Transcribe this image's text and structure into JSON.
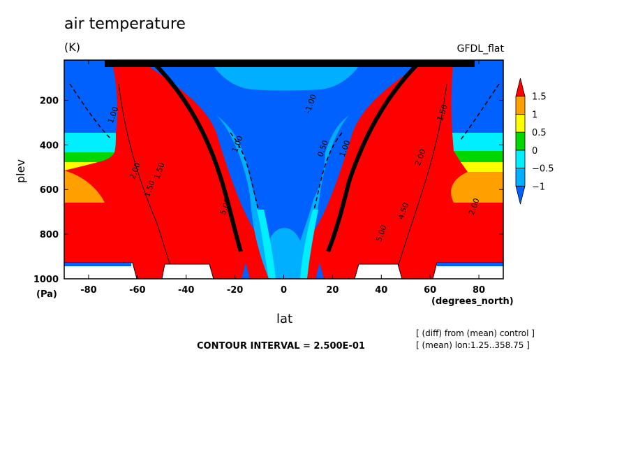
{
  "header": {
    "title": "air temperature",
    "units": "(K)",
    "model": "GFDL_flat"
  },
  "axes": {
    "xlabel": "lat",
    "xunits": "(degrees_north)",
    "ylabel": "plev",
    "yunits": "(Pa)"
  },
  "footer": {
    "contour_interval": "CONTOUR INTERVAL = 2.500E-01",
    "note_diff": "[ (diff) from (mean) control ]",
    "note_mean": "[ (mean) lon:1.25..358.75 ]"
  },
  "colors": {
    "red": "#ff0000",
    "orange": "#ff9f00",
    "yellow": "#ffff00",
    "green": "#00d700",
    "cyan": "#00efff",
    "lightblue": "#00afff",
    "blue": "#0061ff",
    "black": "#000000"
  },
  "chart_data": {
    "type": "heatmap",
    "title": "air temperature",
    "subtitle": "(K)",
    "xlabel": "lat",
    "ylabel": "plev",
    "xlim": [
      -90,
      90
    ],
    "ylim": [
      1000,
      20
    ],
    "x_ticks": [
      -80,
      -60,
      -40,
      -20,
      0,
      20,
      40,
      60,
      80
    ],
    "x_tick_labels": [
      "-80",
      "-60",
      "-40",
      "-20",
      "0",
      "20",
      "40",
      "60",
      "80"
    ],
    "y_ticks": [
      200,
      400,
      600,
      800,
      1000
    ],
    "y_tick_labels": [
      "200",
      "400",
      "600",
      "800",
      "1000"
    ],
    "colorbar": {
      "levels": [
        -1,
        -0.5,
        0,
        0.5,
        1,
        1.5
      ],
      "labels": [
        "−1",
        "−0.5",
        "0",
        "0.5",
        "1",
        "1.5"
      ],
      "bin_colors": [
        "#0061ff",
        "#00afff",
        "#00efff",
        "#00d700",
        "#ffff00",
        "#ff9f00",
        "#ff0000"
      ]
    },
    "contour_labels": [
      {
        "text": "1.00",
        "lat": -69,
        "plev": 270
      },
      {
        "text": "2.00",
        "lat": -60,
        "plev": 520
      },
      {
        "text": "1.50",
        "lat": -50,
        "plev": 520
      },
      {
        "text": "1.50",
        "lat": -54,
        "plev": 600
      },
      {
        "text": "-1.00",
        "lat": 12,
        "plev": 220
      },
      {
        "text": "1.00",
        "lat": -18,
        "plev": 400
      },
      {
        "text": "5.00",
        "lat": -23,
        "plev": 680
      },
      {
        "text": "0.50",
        "lat": 17,
        "plev": 420
      },
      {
        "text": "1.00",
        "lat": 26,
        "plev": 420
      },
      {
        "text": "5.00",
        "lat": 41,
        "plev": 800
      },
      {
        "text": "4.50",
        "lat": 50,
        "plev": 700
      },
      {
        "text": "1.50",
        "lat": 66,
        "plev": 260
      },
      {
        "text": "2.00",
        "lat": 57,
        "plev": 460
      },
      {
        "text": "2.00",
        "lat": 79,
        "plev": 680
      }
    ],
    "annotations": [
      "CONTOUR INTERVAL = 2.500E-01",
      "[ (diff) from (mean) control ]",
      "[ (mean) lon:1.25..358.75 ]"
    ]
  }
}
